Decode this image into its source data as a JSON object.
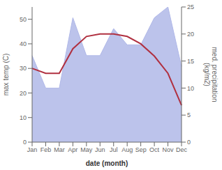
{
  "chart_data": {
    "type": "line",
    "categories": [
      "Jan",
      "Feb",
      "Mar",
      "Apr",
      "May",
      "Jun",
      "Jul",
      "Aug",
      "Sep",
      "Oct",
      "Nov",
      "Dec"
    ],
    "series": [
      {
        "type": "area",
        "axis": "y2",
        "color": "#b0b8e8",
        "values": [
          16,
          10,
          10,
          23,
          16,
          16,
          21,
          18,
          18,
          23,
          25,
          14
        ]
      },
      {
        "type": "line",
        "color": "#b03040",
        "values": [
          30,
          28,
          28,
          38,
          43,
          44,
          44,
          43,
          40,
          35,
          28,
          15
        ]
      }
    ],
    "xlabel": "date (month)",
    "ylabel": "max temp (C)",
    "y2label": "med. precipitation\n(kg/m2)",
    "ylim": [
      0,
      55
    ],
    "yticks": [
      0,
      10,
      20,
      30,
      40,
      50
    ],
    "y2lim": [
      0,
      25
    ],
    "y2ticks": [
      0,
      5,
      10,
      15,
      20,
      25
    ],
    "grid": false
  }
}
